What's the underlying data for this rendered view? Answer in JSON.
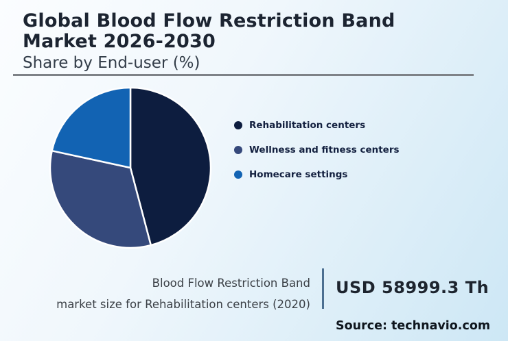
{
  "header": {
    "title_line1": "Global Blood Flow Restriction Band",
    "title_line2": "Market 2026-2030",
    "subtitle": "Share by End-user (%)"
  },
  "chart_data": {
    "type": "pie",
    "title": "Global Blood Flow Restriction Band Market 2026-2030",
    "subtitle": "Share by End-user (%)",
    "categories": [
      "Rehabilitation centers",
      "Wellness and fitness centers",
      "Homecare settings"
    ],
    "values": [
      45.9,
      32.5,
      21.6
    ],
    "unit": "%",
    "colors": [
      "#0d1d3f",
      "#35497b",
      "#1263b3"
    ],
    "start_angle_deg": 0,
    "direction": "clockwise",
    "legend_position": "right",
    "slice_stroke_color": "#ffffff"
  },
  "legend": {
    "items": [
      {
        "label": "Rehabilitation centers",
        "color": "#0d1d3f"
      },
      {
        "label": "Wellness and fitness centers",
        "color": "#35497b"
      },
      {
        "label": "Homecare settings",
        "color": "#1263b3"
      }
    ]
  },
  "footer": {
    "stat_label_line1": "Blood Flow Restriction Band",
    "stat_label_line2": "market size for Rehabilitation centers (2020)",
    "stat_value": "USD 58999.3 Th",
    "source": "Source: technavio.com"
  }
}
